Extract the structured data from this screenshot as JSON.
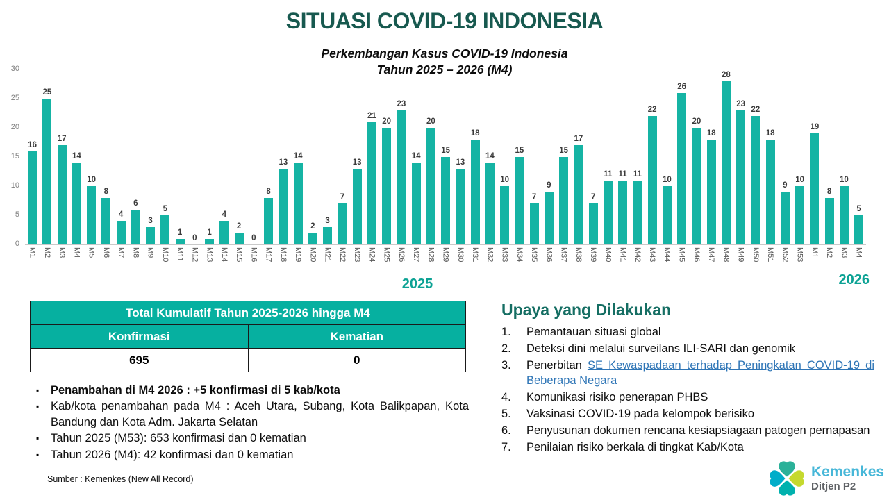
{
  "header": {
    "title": "SITUASI COVID-19 INDONESIA"
  },
  "chart_data": {
    "type": "bar",
    "title": "Perkembangan Kasus COVID-19 Indonesia",
    "subtitle": "Tahun 2025 – 2026 (M4)",
    "categories": [
      "M1",
      "M2",
      "M3",
      "M4",
      "M5",
      "M6",
      "M7",
      "M8",
      "M9",
      "M10",
      "M11",
      "M12",
      "M13",
      "M14",
      "M15",
      "M16",
      "M17",
      "M18",
      "M19",
      "M20",
      "M21",
      "M22",
      "M23",
      "M24",
      "M25",
      "M26",
      "M27",
      "M28",
      "M29",
      "M30",
      "M31",
      "M32",
      "M33",
      "M34",
      "M35",
      "M36",
      "M37",
      "M38",
      "M39",
      "M40",
      "M41",
      "M42",
      "M43",
      "M44",
      "M45",
      "M46",
      "M47",
      "M48",
      "M49",
      "M50",
      "M51",
      "M52",
      "M53",
      "M1",
      "M2",
      "M3",
      "M4"
    ],
    "values": [
      16,
      25,
      17,
      14,
      10,
      8,
      4,
      6,
      3,
      5,
      1,
      0,
      1,
      4,
      2,
      0,
      8,
      13,
      14,
      2,
      3,
      7,
      13,
      21,
      20,
      23,
      14,
      20,
      15,
      13,
      18,
      14,
      10,
      15,
      7,
      9,
      15,
      17,
      7,
      11,
      11,
      11,
      22,
      10,
      26,
      20,
      18,
      28,
      23,
      22,
      18,
      9,
      10,
      19,
      8,
      10,
      5
    ],
    "ylim": [
      0,
      30
    ],
    "yticks": [
      0,
      5,
      10,
      15,
      20,
      25,
      30
    ],
    "bar_color": "#15B4A4",
    "grid": "off",
    "year_left": "2025",
    "year_right": "2026"
  },
  "table": {
    "title": "Total Kumulatif Tahun 2025-2026 hingga M4",
    "columns": [
      "Konfirmasi",
      "Kematian"
    ],
    "values": [
      "695",
      "0"
    ]
  },
  "bullet_marker": "▪",
  "bullets": [
    {
      "bold": true,
      "text": "Penambahan di M4 2026 : +5 konfirmasi di 5 kab/kota"
    },
    {
      "bold": false,
      "text": "Kab/kota penambahan pada M4 : Aceh Utara, Subang, Kota Balikpapan, Kota Bandung dan Kota Adm. Jakarta Selatan"
    },
    {
      "bold": false,
      "text": "Tahun 2025 (M53): 653 konfirmasi dan 0 kematian"
    },
    {
      "bold": false,
      "text": "Tahun 2026 (M4): 42 konfirmasi dan 0 kematian"
    }
  ],
  "source": "Sumber : Kemenkes (New All Record)",
  "efforts": {
    "title": "Upaya yang Dilakukan",
    "items": [
      {
        "text": "Pemantauan situasi global"
      },
      {
        "text": "Deteksi dini melalui surveilans ILI-SARI dan genomik"
      },
      {
        "prefix": "Penerbitan ",
        "link_text": "SE Kewaspadaan terhadap Peningkatan COVID-19  di Beberapa Negara",
        "justify": true
      },
      {
        "text": "Komunikasi risiko penerapan PHBS"
      },
      {
        "text": "Vaksinasi COVID-19 pada kelompok berisiko"
      },
      {
        "text": "Penyusunan dokumen rencana kesiapsiagaan patogen pernapasan",
        "justify": true
      },
      {
        "text": "Penilaian risiko berkala di tingkat Kab/Kota"
      }
    ]
  },
  "logo": {
    "name": "Kemenkes",
    "sub": "Ditjen P2",
    "petal_colors": {
      "north": "#2BB199",
      "east": "#C5D92E",
      "south": "#00B1AE",
      "west": "#00ADC9"
    }
  }
}
